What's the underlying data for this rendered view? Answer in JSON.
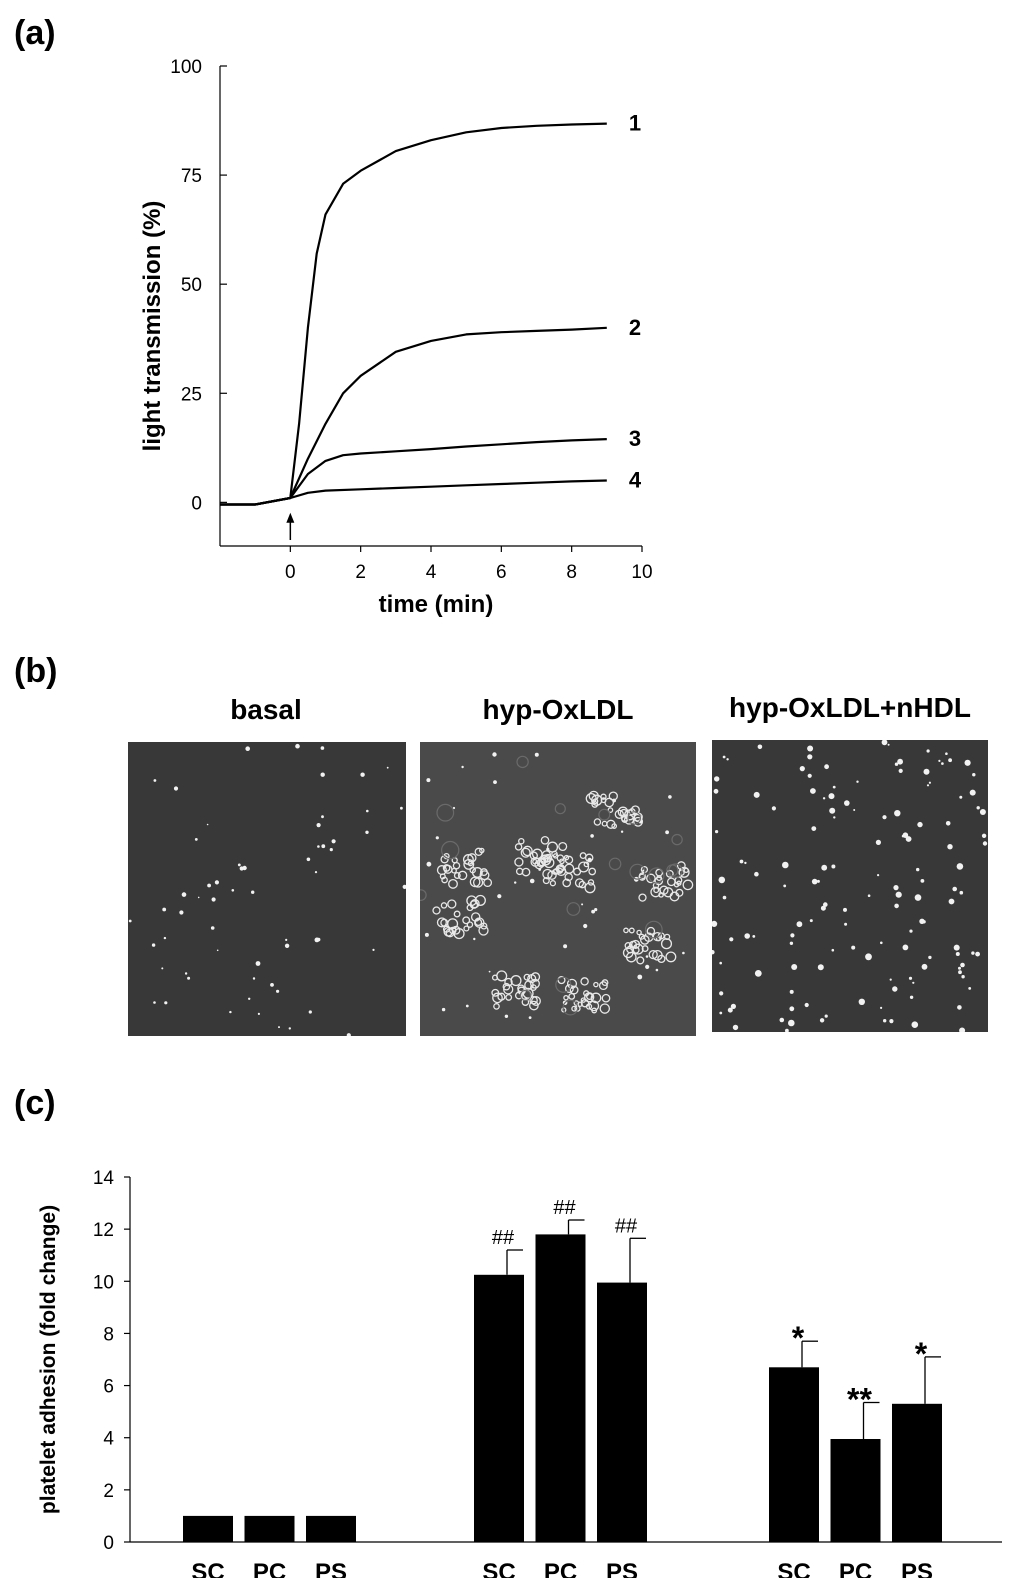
{
  "panels": {
    "a": "(a)",
    "b": "(b)",
    "c": "(c)"
  },
  "chart_data": [
    {
      "type": "line",
      "xlabel": "time (min)",
      "ylabel": "light transmission (%)",
      "xlim": [
        -2,
        10
      ],
      "ylim": [
        -10,
        100
      ],
      "xticks": [
        0,
        2,
        4,
        6,
        8,
        10
      ],
      "yticks": [
        0,
        25,
        50,
        75,
        100
      ],
      "arrow_at_x": 0,
      "series": [
        {
          "name": "1",
          "x": [
            -2,
            -1,
            0,
            0.25,
            0.5,
            0.75,
            1,
            1.5,
            2,
            3,
            4,
            5,
            6,
            7,
            8,
            9
          ],
          "y": [
            -0.5,
            -0.5,
            1,
            18,
            40,
            57,
            66,
            73,
            76,
            80.5,
            83,
            84.8,
            85.8,
            86.3,
            86.6,
            86.8
          ]
        },
        {
          "name": "2",
          "x": [
            -2,
            -1,
            0,
            0.5,
            1,
            1.5,
            2,
            3,
            4,
            5,
            6,
            7,
            8,
            9
          ],
          "y": [
            -0.5,
            -0.5,
            1,
            10,
            18,
            25,
            29,
            34.5,
            37,
            38.5,
            39,
            39.3,
            39.6,
            40
          ]
        },
        {
          "name": "3",
          "x": [
            -2,
            -1,
            0,
            0.5,
            1,
            1.5,
            2,
            3,
            4,
            5,
            6,
            7,
            8,
            9
          ],
          "y": [
            -0.5,
            -0.5,
            1,
            6.5,
            9.5,
            10.8,
            11.2,
            11.7,
            12.2,
            12.8,
            13.3,
            13.8,
            14.2,
            14.5
          ]
        },
        {
          "name": "4",
          "x": [
            -2,
            -1,
            0,
            0.5,
            1,
            2,
            3,
            4,
            5,
            6,
            7,
            8,
            9
          ],
          "y": [
            -0.5,
            -0.5,
            1,
            2.2,
            2.7,
            3.0,
            3.3,
            3.6,
            3.9,
            4.2,
            4.5,
            4.8,
            5.0
          ]
        }
      ]
    },
    {
      "type": "bar",
      "ylabel": "platelet adhesion (fold change)",
      "ylim": [
        0,
        14
      ],
      "yticks": [
        0,
        2,
        4,
        6,
        8,
        10,
        12,
        14
      ],
      "groups": [
        {
          "bars": [
            {
              "label": "SC",
              "value": 1.0,
              "error": 0,
              "annotation": ""
            },
            {
              "label": "PC",
              "value": 1.0,
              "error": 0,
              "annotation": ""
            },
            {
              "label": "PS",
              "value": 1.0,
              "error": 0,
              "annotation": ""
            }
          ]
        },
        {
          "bars": [
            {
              "label": "SC",
              "value": 10.25,
              "error": 0.95,
              "annotation": "##"
            },
            {
              "label": "PC",
              "value": 11.8,
              "error": 0.55,
              "annotation": "##"
            },
            {
              "label": "PS",
              "value": 9.95,
              "error": 1.7,
              "annotation": "##"
            }
          ]
        },
        {
          "bars": [
            {
              "label": "SC",
              "value": 6.7,
              "error": 1.0,
              "annotation": "*"
            },
            {
              "label": "PC",
              "value": 3.95,
              "error": 1.4,
              "annotation": "**"
            },
            {
              "label": "PS",
              "value": 5.3,
              "error": 1.8,
              "annotation": "*"
            }
          ]
        }
      ]
    }
  ],
  "micrographs": [
    {
      "title": "basal",
      "density": "sparse"
    },
    {
      "title": "hyp-OxLDL",
      "density": "aggregated"
    },
    {
      "title": "hyp-OxLDL+nHDL",
      "density": "dense"
    }
  ]
}
